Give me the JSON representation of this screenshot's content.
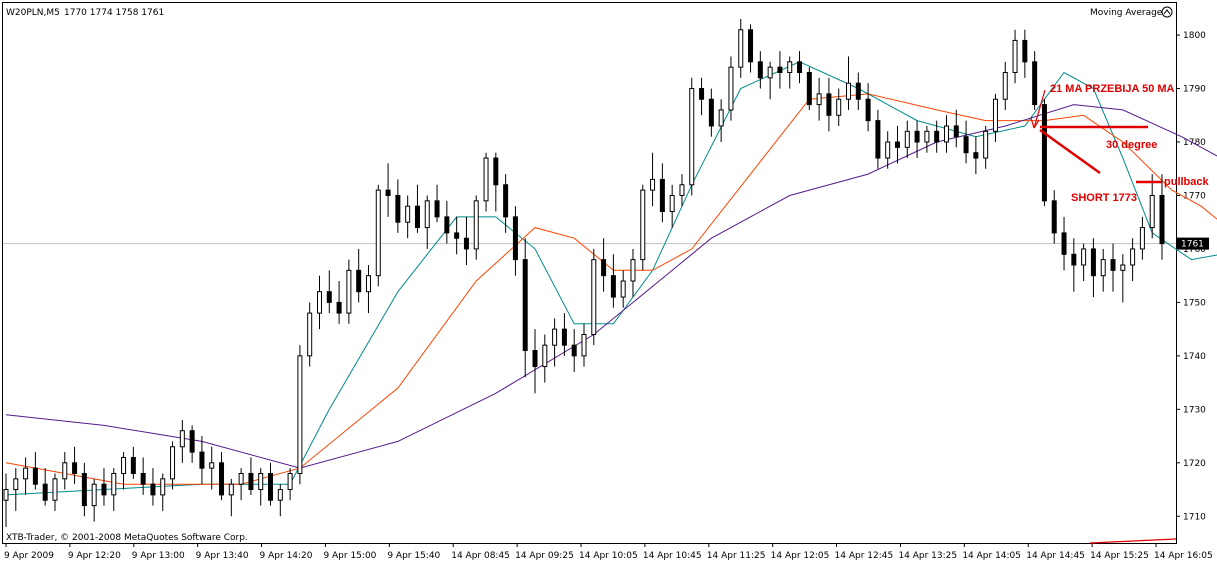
{
  "header": {
    "symbol": "W20PLN,M5",
    "ohlc": "1770 1774 1758 1761",
    "indicator": "Moving Average"
  },
  "footer": {
    "copyright": "XTB-Trader, © 2001-2008 MetaQuotes Software Corp."
  },
  "chart_data": {
    "type": "candlestick",
    "ylim": [
      1705,
      1806
    ],
    "yticks": [
      1710,
      1720,
      1730,
      1740,
      1750,
      1760,
      1770,
      1780,
      1790,
      1800
    ],
    "current_price": "1761",
    "xticks": [
      "9 Apr 2009",
      "9 Apr 12:20",
      "9 Apr 13:00",
      "9 Apr 13:40",
      "9 Apr 14:20",
      "9 Apr 15:00",
      "9 Apr 15:40",
      "14 Apr 08:45",
      "14 Apr 09:25",
      "14 Apr 10:05",
      "14 Apr 10:45",
      "14 Apr 11:25",
      "14 Apr 12:05",
      "14 Apr 12:45",
      "14 Apr 13:25",
      "14 Apr 14:05",
      "14 Apr 14:45",
      "14 Apr 15:25",
      "14 Apr 16:05"
    ],
    "candles": [
      [
        1713,
        1718,
        1708,
        1715
      ],
      [
        1715,
        1719,
        1711,
        1717
      ],
      [
        1717,
        1721,
        1714,
        1719
      ],
      [
        1719,
        1722,
        1715,
        1716
      ],
      [
        1716,
        1719,
        1712,
        1713
      ],
      [
        1713,
        1718,
        1711,
        1717
      ],
      [
        1717,
        1722,
        1715,
        1720
      ],
      [
        1720,
        1723,
        1716,
        1718
      ],
      [
        1718,
        1720,
        1710,
        1712
      ],
      [
        1712,
        1717,
        1709,
        1716
      ],
      [
        1716,
        1719,
        1712,
        1714
      ],
      [
        1714,
        1719,
        1711,
        1718
      ],
      [
        1718,
        1722,
        1715,
        1721
      ],
      [
        1721,
        1723,
        1717,
        1718
      ],
      [
        1718,
        1721,
        1714,
        1716
      ],
      [
        1716,
        1719,
        1712,
        1714
      ],
      [
        1714,
        1718,
        1711,
        1717
      ],
      [
        1717,
        1724,
        1715,
        1723
      ],
      [
        1723,
        1728,
        1720,
        1726
      ],
      [
        1726,
        1727,
        1720,
        1722
      ],
      [
        1722,
        1725,
        1716,
        1719
      ],
      [
        1719,
        1723,
        1715,
        1720
      ],
      [
        1720,
        1722,
        1713,
        1714
      ],
      [
        1714,
        1717,
        1710,
        1716
      ],
      [
        1716,
        1719,
        1713,
        1718
      ],
      [
        1718,
        1721,
        1714,
        1715
      ],
      [
        1715,
        1719,
        1712,
        1718
      ],
      [
        1718,
        1720,
        1712,
        1713
      ],
      [
        1713,
        1716,
        1710,
        1715
      ],
      [
        1715,
        1719,
        1713,
        1718
      ],
      [
        1718,
        1742,
        1716,
        1740
      ],
      [
        1740,
        1750,
        1738,
        1748
      ],
      [
        1748,
        1755,
        1745,
        1752
      ],
      [
        1752,
        1756,
        1748,
        1750
      ],
      [
        1750,
        1754,
        1746,
        1748
      ],
      [
        1748,
        1758,
        1746,
        1756
      ],
      [
        1756,
        1760,
        1750,
        1752
      ],
      [
        1752,
        1757,
        1748,
        1755
      ],
      [
        1755,
        1772,
        1753,
        1771
      ],
      [
        1771,
        1776,
        1766,
        1770
      ],
      [
        1770,
        1773,
        1763,
        1765
      ],
      [
        1765,
        1770,
        1762,
        1768
      ],
      [
        1768,
        1772,
        1763,
        1764
      ],
      [
        1764,
        1770,
        1760,
        1769
      ],
      [
        1769,
        1772,
        1765,
        1766
      ],
      [
        1766,
        1769,
        1761,
        1763
      ],
      [
        1763,
        1766,
        1759,
        1762
      ],
      [
        1762,
        1766,
        1757,
        1760
      ],
      [
        1760,
        1770,
        1758,
        1769
      ],
      [
        1769,
        1778,
        1767,
        1777
      ],
      [
        1777,
        1778,
        1767,
        1772
      ],
      [
        1772,
        1774,
        1763,
        1766
      ],
      [
        1766,
        1768,
        1755,
        1758
      ],
      [
        1758,
        1762,
        1736,
        1741
      ],
      [
        1741,
        1745,
        1733,
        1738
      ],
      [
        1738,
        1744,
        1735,
        1742
      ],
      [
        1742,
        1747,
        1738,
        1745
      ],
      [
        1745,
        1748,
        1740,
        1742
      ],
      [
        1742,
        1745,
        1737,
        1740
      ],
      [
        1740,
        1746,
        1738,
        1744
      ],
      [
        1744,
        1760,
        1742,
        1758
      ],
      [
        1758,
        1762,
        1752,
        1755
      ],
      [
        1755,
        1759,
        1749,
        1751
      ],
      [
        1751,
        1756,
        1749,
        1754
      ],
      [
        1754,
        1760,
        1751,
        1758
      ],
      [
        1758,
        1772,
        1756,
        1771
      ],
      [
        1771,
        1778,
        1768,
        1773
      ],
      [
        1773,
        1776,
        1765,
        1767
      ],
      [
        1767,
        1772,
        1764,
        1770
      ],
      [
        1770,
        1774,
        1768,
        1772
      ],
      [
        1772,
        1792,
        1770,
        1790
      ],
      [
        1790,
        1792,
        1785,
        1788
      ],
      [
        1788,
        1790,
        1781,
        1783
      ],
      [
        1783,
        1788,
        1780,
        1786
      ],
      [
        1786,
        1796,
        1784,
        1794
      ],
      [
        1794,
        1803,
        1792,
        1801
      ],
      [
        1801,
        1802,
        1793,
        1795
      ],
      [
        1795,
        1797,
        1790,
        1792
      ],
      [
        1792,
        1795,
        1788,
        1794
      ],
      [
        1794,
        1797,
        1790,
        1793
      ],
      [
        1793,
        1796,
        1790,
        1795
      ],
      [
        1795,
        1797,
        1791,
        1793
      ],
      [
        1793,
        1794,
        1786,
        1787
      ],
      [
        1787,
        1792,
        1784,
        1789
      ],
      [
        1789,
        1792,
        1782,
        1785
      ],
      [
        1785,
        1790,
        1783,
        1788
      ],
      [
        1788,
        1796,
        1786,
        1791
      ],
      [
        1791,
        1793,
        1786,
        1788
      ],
      [
        1788,
        1791,
        1782,
        1784
      ],
      [
        1784,
        1786,
        1775,
        1777
      ],
      [
        1777,
        1782,
        1775,
        1780
      ],
      [
        1780,
        1783,
        1776,
        1779
      ],
      [
        1779,
        1784,
        1777,
        1782
      ],
      [
        1782,
        1784,
        1777,
        1780
      ],
      [
        1780,
        1783,
        1778,
        1782
      ],
      [
        1782,
        1784,
        1778,
        1780
      ],
      [
        1780,
        1785,
        1778,
        1783
      ],
      [
        1783,
        1786,
        1779,
        1781
      ],
      [
        1781,
        1784,
        1776,
        1778
      ],
      [
        1778,
        1781,
        1774,
        1777
      ],
      [
        1777,
        1783,
        1775,
        1782
      ],
      [
        1782,
        1789,
        1780,
        1788
      ],
      [
        1788,
        1795,
        1786,
        1793
      ],
      [
        1793,
        1801,
        1791,
        1799
      ],
      [
        1799,
        1801,
        1792,
        1795
      ],
      [
        1795,
        1797,
        1786,
        1787
      ],
      [
        1787,
        1788,
        1768,
        1769
      ],
      [
        1769,
        1771,
        1761,
        1763
      ],
      [
        1763,
        1766,
        1756,
        1759
      ],
      [
        1759,
        1762,
        1752,
        1757
      ],
      [
        1757,
        1761,
        1754,
        1760
      ],
      [
        1760,
        1762,
        1751,
        1755
      ],
      [
        1755,
        1760,
        1752,
        1758
      ],
      [
        1758,
        1761,
        1752,
        1756
      ],
      [
        1756,
        1759,
        1750,
        1757
      ],
      [
        1757,
        1762,
        1754,
        1760
      ],
      [
        1760,
        1766,
        1758,
        1764
      ],
      [
        1764,
        1774,
        1762,
        1770
      ],
      [
        1770,
        1774,
        1758,
        1761
      ]
    ],
    "series": [
      {
        "color": "#008b8b",
        "points": [
          [
            0,
            1714
          ],
          [
            10,
            1715
          ],
          [
            20,
            1716
          ],
          [
            29,
            1716
          ],
          [
            33,
            1730
          ],
          [
            40,
            1752
          ],
          [
            46,
            1766
          ],
          [
            50,
            1766
          ],
          [
            54,
            1760
          ],
          [
            58,
            1746
          ],
          [
            62,
            1746
          ],
          [
            66,
            1756
          ],
          [
            70,
            1772
          ],
          [
            75,
            1790
          ],
          [
            81,
            1795
          ],
          [
            87,
            1790
          ],
          [
            93,
            1784
          ],
          [
            99,
            1781
          ],
          [
            104,
            1783
          ],
          [
            108,
            1793
          ],
          [
            111,
            1790
          ],
          [
            114,
            1777
          ],
          [
            117,
            1763
          ],
          [
            121,
            1758
          ],
          [
            124,
            1759
          ],
          [
            126,
            1761
          ]
        ]
      },
      {
        "color": "#ff4500",
        "points": [
          [
            0,
            1720
          ],
          [
            12,
            1716
          ],
          [
            24,
            1716
          ],
          [
            30,
            1719
          ],
          [
            40,
            1734
          ],
          [
            48,
            1754
          ],
          [
            54,
            1764
          ],
          [
            58,
            1762
          ],
          [
            62,
            1756
          ],
          [
            66,
            1756
          ],
          [
            70,
            1760
          ],
          [
            76,
            1774
          ],
          [
            82,
            1788
          ],
          [
            88,
            1789
          ],
          [
            95,
            1786
          ],
          [
            100,
            1784
          ],
          [
            106,
            1784
          ],
          [
            110,
            1785
          ],
          [
            114,
            1780
          ],
          [
            119,
            1771
          ],
          [
            122,
            1768
          ],
          [
            126,
            1762
          ]
        ]
      },
      {
        "color": "#551a8b",
        "points": [
          [
            0,
            1729
          ],
          [
            10,
            1727
          ],
          [
            20,
            1724
          ],
          [
            30,
            1719
          ],
          [
            40,
            1724
          ],
          [
            50,
            1733
          ],
          [
            60,
            1744
          ],
          [
            66,
            1753
          ],
          [
            72,
            1762
          ],
          [
            80,
            1770
          ],
          [
            88,
            1774
          ],
          [
            95,
            1780
          ],
          [
            102,
            1783
          ],
          [
            109,
            1787
          ],
          [
            114,
            1786
          ],
          [
            120,
            1781
          ],
          [
            126,
            1775
          ]
        ]
      }
    ]
  },
  "annotations": {
    "cross": "21 MA PRZEBIJA 50 MA",
    "degree": "30 degree",
    "short": "SHORT 1773",
    "pullback": "pullback"
  }
}
